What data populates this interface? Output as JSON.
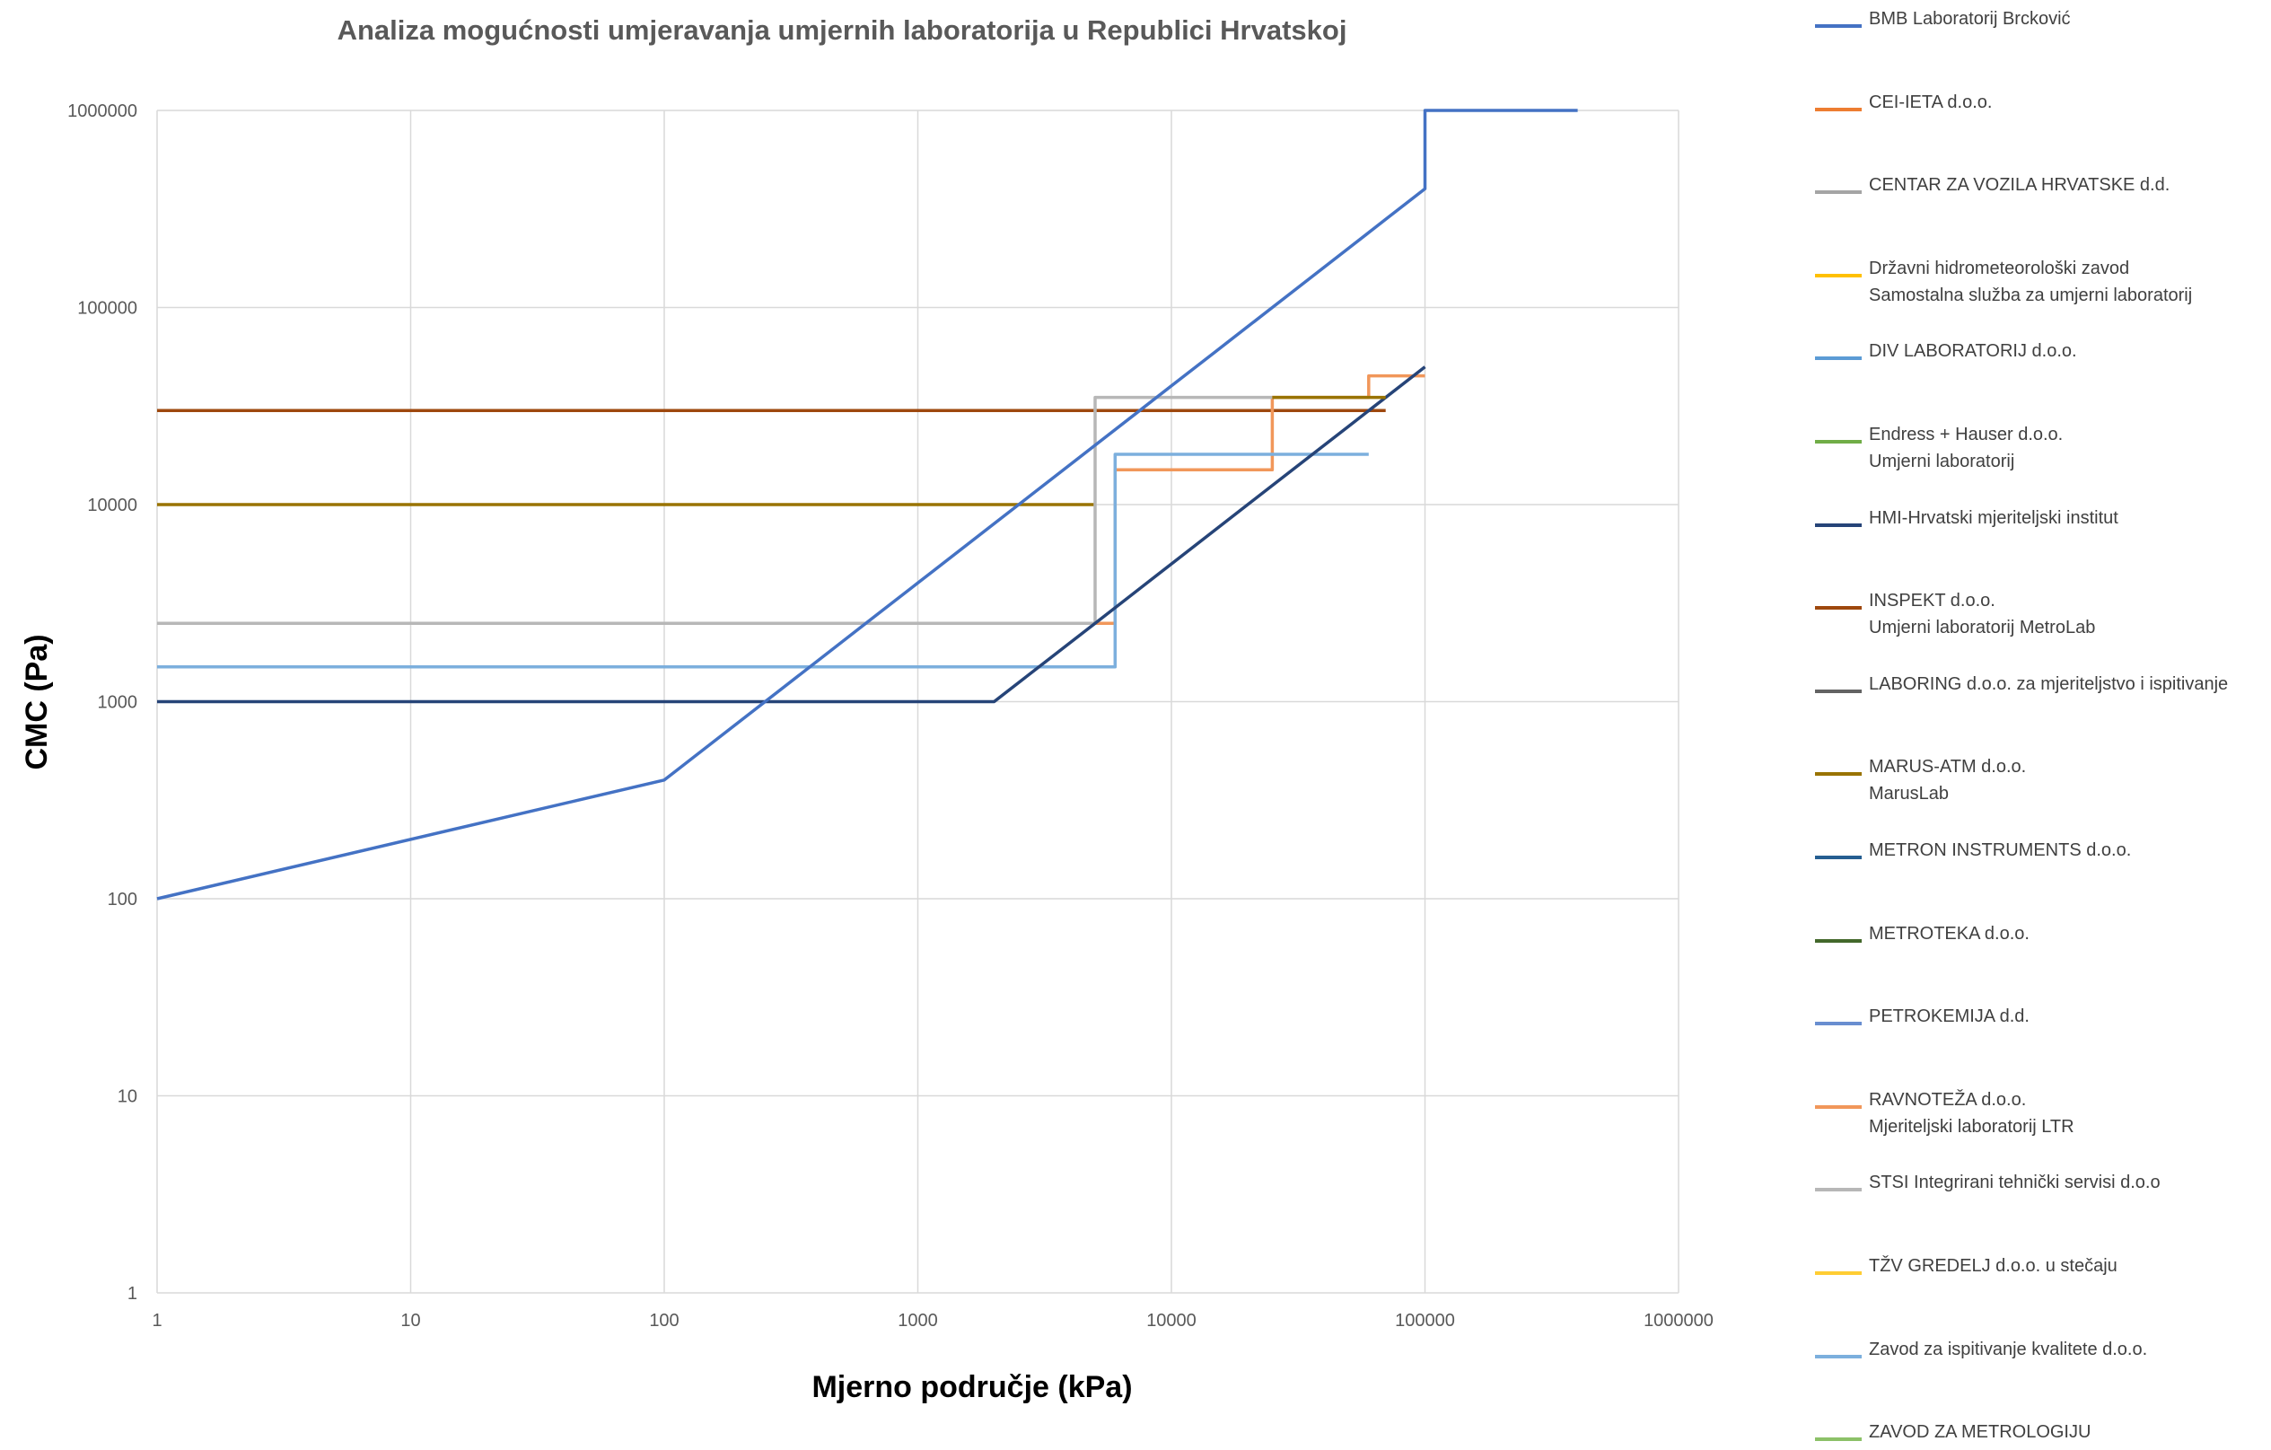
{
  "chart_data": {
    "type": "line",
    "title": "Analiza mogućnosti umjeravanja umjernih laboratorija u Republici Hrvatskoj",
    "xlabel": "Mjerno područje (kPa)",
    "ylabel": "CMC (Pa)",
    "xscale": "log",
    "yscale": "log",
    "xlim": [
      1,
      1000000
    ],
    "ylim": [
      1,
      1000000
    ],
    "x_ticks": [
      "1",
      "10",
      "100",
      "1000",
      "10000",
      "100000",
      "1000000"
    ],
    "y_ticks": [
      "1",
      "10",
      "100",
      "1000",
      "10000",
      "100000",
      "1000000"
    ],
    "grid": true,
    "legend_position": "right",
    "series": [
      {
        "name": "BMB Laboratorij Brcković",
        "color": "#4472C4",
        "points": [
          [
            1,
            100
          ],
          [
            100,
            400
          ],
          [
            200,
            800
          ],
          [
            700,
            2800
          ],
          [
            1000,
            4000
          ],
          [
            2000,
            8000
          ],
          [
            5000,
            20000
          ],
          [
            10000,
            40000
          ],
          [
            15000,
            60000
          ],
          [
            20000,
            80000
          ],
          [
            25000,
            100000
          ],
          [
            50000,
            200000
          ],
          [
            60000,
            240000
          ],
          [
            70000,
            280000
          ],
          [
            100000,
            400000
          ],
          [
            100000,
            1000000
          ],
          [
            400000,
            1000000
          ]
        ]
      },
      {
        "name": "CEI-IETA d.o.o.",
        "color": "#ED7D31",
        "points": []
      },
      {
        "name": "CENTAR ZA VOZILA HRVATSKE d.d.",
        "color": "#A5A5A5",
        "points": []
      },
      {
        "name": "Državni hidrometeorološki zavod\nSamostalna služba za umjerni laboratorij",
        "color": "#FFC000",
        "points": []
      },
      {
        "name": "DIV LABORATORIJ d.o.o.",
        "color": "#5B9BD5",
        "points": []
      },
      {
        "name": "Endress + Hauser d.o.o.\nUmjerni laboratorij",
        "color": "#70AD47",
        "points": []
      },
      {
        "name": "HMI-Hrvatski mjeriteljski institut",
        "color": "#264478",
        "points": [
          [
            1,
            1000
          ],
          [
            2000,
            1000
          ],
          [
            5000,
            2500
          ],
          [
            10000,
            5000
          ],
          [
            20000,
            10000
          ],
          [
            50000,
            25000
          ],
          [
            100000,
            50000
          ]
        ]
      },
      {
        "name": "INSPEKT d.o.o.\nUmjerni laboratorij MetroLab",
        "color": "#9E480E",
        "points": [
          [
            1,
            30000
          ],
          [
            70000,
            30000
          ]
        ]
      },
      {
        "name": "LABORING d.o.o. za mjeriteljstvo i ispitivanje",
        "color": "#636363",
        "points": []
      },
      {
        "name": "MARUS-ATM d.o.o.\nMarusLab",
        "color": "#997300",
        "points": [
          [
            1,
            10000
          ],
          [
            5000,
            10000
          ]
        ]
      },
      {
        "name": "METRON INSTRUMENTS d.o.o.",
        "color": "#255E91",
        "points": []
      },
      {
        "name": "METROTEKA d.o.o.",
        "color": "#43682B",
        "points": []
      },
      {
        "name": "PETROKEMIJA d.d.",
        "color": "#698ED0",
        "points": []
      },
      {
        "name": "RAVNOTEŽA d.o.o.\nMjeriteljski laboratorij LTR",
        "color": "#F1975A",
        "points": [
          [
            1,
            2500
          ],
          [
            6000,
            2500
          ],
          [
            6000,
            15000
          ],
          [
            25000,
            15000
          ],
          [
            25000,
            35000
          ],
          [
            60000,
            35000
          ],
          [
            60000,
            45000
          ],
          [
            100000,
            45000
          ]
        ]
      },
      {
        "name": "STSI Integrirani tehnički servisi d.o.o",
        "color": "#B7B7B7",
        "points": [
          [
            1,
            2500
          ],
          [
            5000,
            2500
          ],
          [
            5000,
            35000
          ],
          [
            25000,
            35000
          ]
        ]
      },
      {
        "name": "TŽV GREDELJ d.o.o. u stečaju",
        "color": "#FFCD33",
        "points": []
      },
      {
        "name": "Zavod za ispitivanje kvalitete d.o.o.",
        "color": "#7CAFDD",
        "points": [
          [
            1,
            1500
          ],
          [
            6000,
            1500
          ],
          [
            6000,
            18000
          ],
          [
            60000,
            18000
          ]
        ]
      },
      {
        "name": "ZAVOD ZA METROLOGIJU",
        "color": "#8CC168",
        "points": []
      }
    ],
    "overlays": [
      {
        "color": "#997300",
        "points": [
          [
            25000,
            35000
          ],
          [
            70000,
            35000
          ]
        ]
      }
    ]
  }
}
